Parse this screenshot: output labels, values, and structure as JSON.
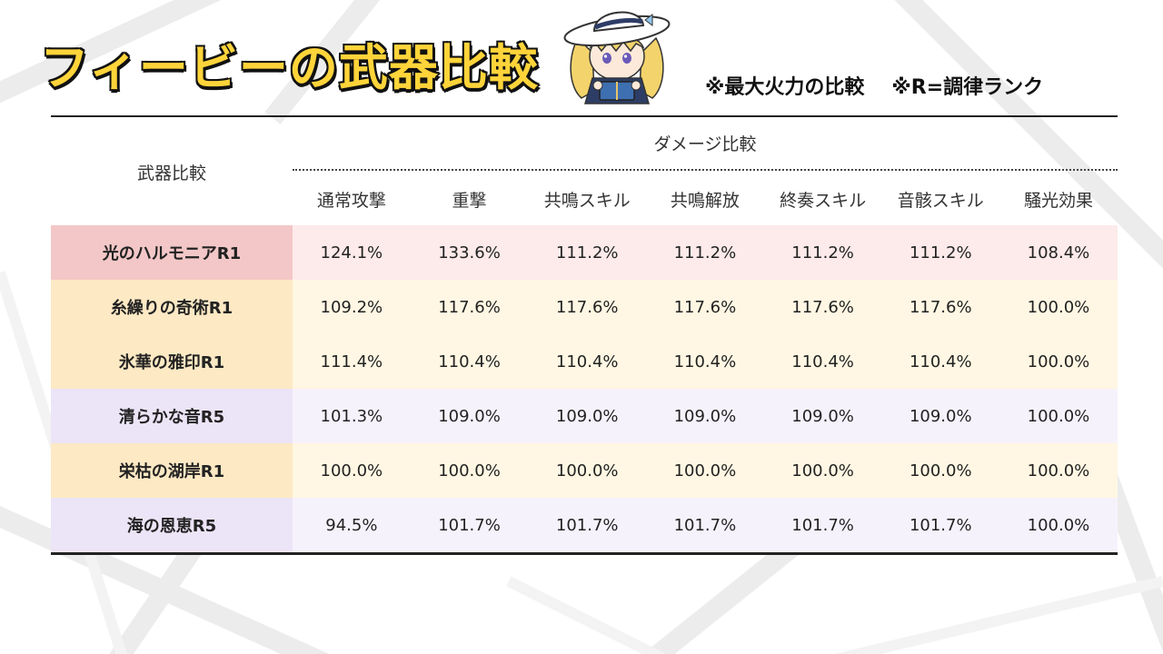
{
  "title": "フィービーの武器比較",
  "notes": [
    "※最大火力の比較",
    "※R=調律ランク"
  ],
  "table": {
    "row_header": "武器比較",
    "group_header": "ダメージ比較",
    "columns": [
      "通常攻撃",
      "重撃",
      "共鳴スキル",
      "共鳴解放",
      "終奏スキル",
      "音骸スキル",
      "騒光効果"
    ],
    "rows": [
      {
        "name": "光のハルモニアR1",
        "values": [
          "124.1%",
          "133.6%",
          "111.2%",
          "111.2%",
          "111.2%",
          "111.2%",
          "108.4%"
        ],
        "name_bg": "#f3c7c7",
        "row_bg": "#fdeaea"
      },
      {
        "name": "糸繰りの奇術R1",
        "values": [
          "109.2%",
          "117.6%",
          "117.6%",
          "117.6%",
          "117.6%",
          "117.6%",
          "100.0%"
        ],
        "name_bg": "#fde9c4",
        "row_bg": "#fff7e3"
      },
      {
        "name": "氷華の雅印R1",
        "values": [
          "111.4%",
          "110.4%",
          "110.4%",
          "110.4%",
          "110.4%",
          "110.4%",
          "100.0%"
        ],
        "name_bg": "#fde9c4",
        "row_bg": "#fff7e3"
      },
      {
        "name": "清らかな音R5",
        "values": [
          "101.3%",
          "109.0%",
          "109.0%",
          "109.0%",
          "109.0%",
          "109.0%",
          "100.0%"
        ],
        "name_bg": "#ece4f7",
        "row_bg": "#f6f2fc"
      },
      {
        "name": "栄枯の湖岸R1",
        "values": [
          "100.0%",
          "100.0%",
          "100.0%",
          "100.0%",
          "100.0%",
          "100.0%",
          "100.0%"
        ],
        "name_bg": "#fde9c4",
        "row_bg": "#fff7e3"
      },
      {
        "name": "海の恩恵R5",
        "values": [
          "94.5%",
          "101.7%",
          "101.7%",
          "101.7%",
          "101.7%",
          "101.7%",
          "100.0%"
        ],
        "name_bg": "#ece4f7",
        "row_bg": "#f6f2fc"
      }
    ]
  },
  "icons": {
    "mascot": "chibi-character-reading-book-icon"
  }
}
